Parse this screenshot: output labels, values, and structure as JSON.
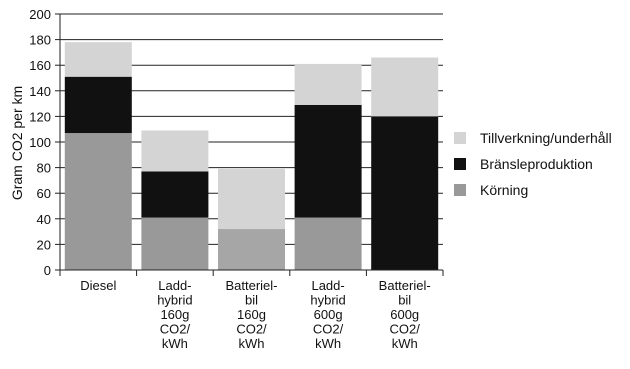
{
  "chart_data": {
    "type": "bar",
    "stacked": true,
    "ylabel": "Gram CO2 per km",
    "ylim": [
      0,
      200
    ],
    "yticks": [
      0,
      20,
      40,
      60,
      80,
      100,
      120,
      140,
      160,
      180,
      200
    ],
    "grid": true,
    "legend_position": "right",
    "categories": [
      [
        "Diesel"
      ],
      [
        "Ladd-",
        "hybrid",
        "160g",
        "CO2/",
        "kWh"
      ],
      [
        "Batteriel-",
        "bil",
        "160g",
        "CO2/",
        "kWh"
      ],
      [
        "Ladd-",
        "hybrid",
        "600g",
        "CO2/",
        "kWh"
      ],
      [
        "Batteriel-",
        "bil",
        "600g",
        "CO2/",
        "kWh"
      ]
    ],
    "series": [
      {
        "name": "Körning",
        "color": "#999999",
        "values": [
          107,
          41,
          0,
          41,
          0
        ]
      },
      {
        "name": "Bränsleproduktion",
        "color": "#111111",
        "values": [
          44,
          36,
          32,
          88,
          120
        ]
      },
      {
        "name": "Tillverkning/underhåll",
        "color": "#d4d4d4",
        "values": [
          27,
          32,
          47,
          32,
          46
        ]
      }
    ],
    "bar_colors_override": {
      "2": [
        "#999999",
        "#a6a6a6",
        "#d4d4d4"
      ]
    },
    "legend_order": [
      "Tillverkning/underhåll",
      "Bränsleproduktion",
      "Körning"
    ]
  }
}
